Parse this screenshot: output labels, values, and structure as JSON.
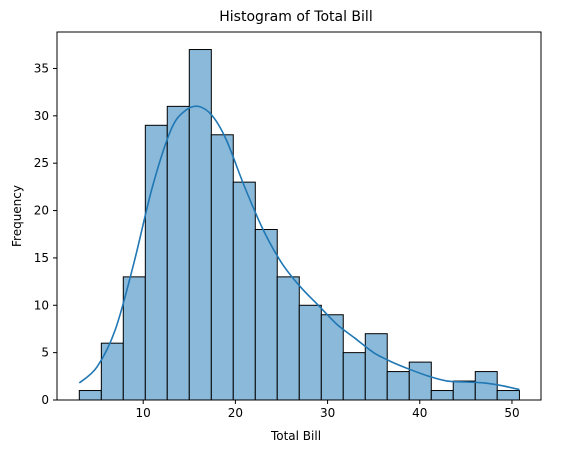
{
  "chart_data": {
    "type": "bar",
    "subtype": "histogram",
    "title": "Histogram of Total Bill",
    "xlabel": "Total Bill",
    "ylabel": "Frequency",
    "xlim": [
      0.65,
      53.15
    ],
    "ylim": [
      0,
      38.85
    ],
    "xticks": [
      10,
      20,
      30,
      40,
      50
    ],
    "yticks": [
      0,
      5,
      10,
      15,
      20,
      25,
      30,
      35
    ],
    "grid": false,
    "legend": "none",
    "bins": [
      {
        "x0": 3.07,
        "x1": 5.46,
        "count": 1
      },
      {
        "x0": 5.46,
        "x1": 7.84,
        "count": 6
      },
      {
        "x0": 7.84,
        "x1": 10.23,
        "count": 13
      },
      {
        "x0": 10.23,
        "x1": 12.61,
        "count": 29
      },
      {
        "x0": 12.61,
        "x1": 15.0,
        "count": 31
      },
      {
        "x0": 15.0,
        "x1": 17.39,
        "count": 37
      },
      {
        "x0": 17.39,
        "x1": 19.77,
        "count": 28
      },
      {
        "x0": 19.77,
        "x1": 22.16,
        "count": 23
      },
      {
        "x0": 22.16,
        "x1": 24.54,
        "count": 18
      },
      {
        "x0": 24.54,
        "x1": 26.93,
        "count": 13
      },
      {
        "x0": 26.93,
        "x1": 29.32,
        "count": 10
      },
      {
        "x0": 29.32,
        "x1": 31.7,
        "count": 9
      },
      {
        "x0": 31.7,
        "x1": 34.09,
        "count": 5
      },
      {
        "x0": 34.09,
        "x1": 36.47,
        "count": 7
      },
      {
        "x0": 36.47,
        "x1": 38.86,
        "count": 3
      },
      {
        "x0": 38.86,
        "x1": 41.25,
        "count": 4
      },
      {
        "x0": 41.25,
        "x1": 43.63,
        "count": 1
      },
      {
        "x0": 43.63,
        "x1": 46.02,
        "count": 2
      },
      {
        "x0": 46.02,
        "x1": 48.4,
        "count": 3
      },
      {
        "x0": 48.4,
        "x1": 50.81,
        "count": 1
      }
    ],
    "kde": {
      "x": [
        3.07,
        5.0,
        7.0,
        9.0,
        11.0,
        13.0,
        14.5,
        16.0,
        17.5,
        19.0,
        21.0,
        23.0,
        25.0,
        27.0,
        29.0,
        31.0,
        33.0,
        35.0,
        37.0,
        39.0,
        41.0,
        43.0,
        45.0,
        47.0,
        49.0,
        50.81
      ],
      "y": [
        1.8,
        3.5,
        7.5,
        14.5,
        22.5,
        28.5,
        30.5,
        31.0,
        30.0,
        27.5,
        22.5,
        18.0,
        14.5,
        12.0,
        10.0,
        8.0,
        6.5,
        5.0,
        4.0,
        3.2,
        2.5,
        2.0,
        1.9,
        1.8,
        1.5,
        1.1
      ]
    },
    "colors": {
      "bar_fill": "#8ab9da",
      "bar_edge": "#000000",
      "kde_line": "#1f77b4"
    }
  }
}
